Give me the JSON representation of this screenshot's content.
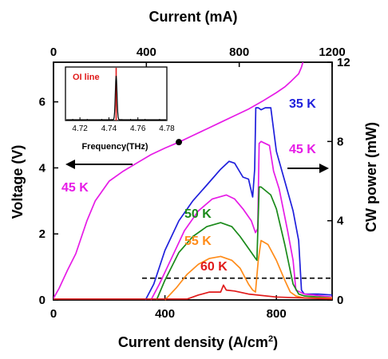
{
  "chart_data": {
    "type": "line",
    "top_axis": {
      "label": "Current (mA)",
      "ticks": [
        "0",
        "400",
        "800",
        "1200"
      ],
      "range": [
        0,
        1200
      ]
    },
    "bottom_axis": {
      "label": "Current density  (A/cm",
      "label_sup": "2",
      "label_end": ")",
      "ticks": [
        "0",
        "400",
        "800"
      ],
      "range": [
        0,
        1000
      ]
    },
    "left_axis": {
      "label": "Voltage (V)",
      "ticks": [
        "0",
        "2",
        "4",
        "6"
      ],
      "range": [
        0,
        7.2
      ]
    },
    "right_axis": {
      "label": "CW power (mW)",
      "ticks": [
        "0",
        "4",
        "8",
        "12"
      ],
      "range": [
        0,
        12
      ]
    },
    "voltage_series": {
      "name": "45 K",
      "color": "#e61be6",
      "x": [
        0,
        20,
        50,
        80,
        100,
        120,
        150,
        200,
        250,
        300,
        350,
        400,
        450,
        500,
        550,
        600,
        650,
        700,
        750,
        800,
        830,
        850,
        880,
        890,
        895,
        900
      ],
      "y": [
        0.05,
        0.35,
        0.9,
        1.4,
        1.9,
        2.4,
        3.0,
        3.6,
        3.9,
        4.15,
        4.4,
        4.6,
        4.78,
        4.98,
        5.18,
        5.38,
        5.58,
        5.78,
        6.02,
        6.28,
        6.45,
        6.6,
        6.85,
        7.05,
        7.2,
        7.35
      ]
    },
    "operating_point": {
      "x": 450,
      "y": 4.78
    },
    "power_series": [
      {
        "name": "35 K",
        "color": "#1f1fdc",
        "x": [
          330,
          360,
          400,
          450,
          500,
          550,
          600,
          630,
          650,
          680,
          700,
          715,
          722,
          726,
          735,
          745,
          760,
          780,
          800,
          830,
          860,
          880,
          890,
          900,
          950,
          1000
        ],
        "y": [
          0,
          0.8,
          2.5,
          4.0,
          5.0,
          5.8,
          6.6,
          7.0,
          6.9,
          6.2,
          6.1,
          5.2,
          6.6,
          9.7,
          9.7,
          9.6,
          9.7,
          9.7,
          7.5,
          6.0,
          4.5,
          3.0,
          0.5,
          0.3,
          0.3,
          0.25
        ]
      },
      {
        "name": "45 K",
        "color": "#e61be6",
        "x": [
          350,
          380,
          420,
          470,
          520,
          570,
          620,
          650,
          680,
          710,
          725,
          733,
          738,
          745,
          760,
          775,
          790,
          810,
          840,
          860,
          870,
          900,
          1000
        ],
        "y": [
          0,
          0.8,
          2.0,
          3.5,
          4.5,
          5.1,
          5.3,
          5.1,
          4.6,
          4.0,
          3.4,
          3.6,
          7.9,
          8.0,
          7.9,
          7.8,
          6.5,
          5.6,
          3.5,
          2.0,
          0.5,
          0.3,
          0.15
        ]
      },
      {
        "name": "50 K",
        "color": "#1a8a1a",
        "x": [
          370,
          400,
          450,
          500,
          550,
          600,
          640,
          670,
          700,
          720,
          730,
          738,
          745,
          780,
          800,
          830,
          860,
          880,
          900,
          1000
        ],
        "y": [
          0,
          1.0,
          2.4,
          3.2,
          3.7,
          3.9,
          3.7,
          3.2,
          2.6,
          2.2,
          2.0,
          5.7,
          5.7,
          5.3,
          4.6,
          2.8,
          0.8,
          0.3,
          0.2,
          0.1
        ]
      },
      {
        "name": "55 K",
        "color": "#ff8c1a",
        "x": [
          400,
          440,
          480,
          520,
          560,
          600,
          640,
          670,
          700,
          715,
          725,
          735,
          745,
          770,
          800,
          830,
          850,
          870,
          900,
          1000
        ],
        "y": [
          0,
          0.6,
          1.3,
          1.8,
          2.1,
          2.2,
          2.0,
          1.6,
          0.8,
          0.5,
          0.4,
          2.0,
          3.0,
          2.8,
          2.0,
          1.0,
          0.4,
          0.2,
          0.1,
          0.1
        ]
      },
      {
        "name": "60 K",
        "color": "#e01a1a",
        "x": [
          0,
          480,
          520,
          560,
          600,
          610,
          620,
          650,
          700,
          800,
          1000
        ],
        "y": [
          0.05,
          0.05,
          0.25,
          0.4,
          0.4,
          0.75,
          0.5,
          0.45,
          0.3,
          0.15,
          0.05
        ]
      }
    ],
    "threshold_line": {
      "y_power": 1.1
    },
    "annotation_arrows": [
      {
        "direction": "left",
        "label": ""
      },
      {
        "direction": "right",
        "label": ""
      }
    ],
    "inset": {
      "title": "OI line",
      "title_color": "#e01a1a",
      "xlabel": "Frequency(THz)",
      "x_ticks": [
        "4.72",
        "4.74",
        "4.76",
        "4.78"
      ],
      "x_range": [
        4.71,
        4.78
      ],
      "peak_center": 4.745,
      "line_color": "#e01a1a",
      "spectrum_color": "#000000"
    }
  }
}
